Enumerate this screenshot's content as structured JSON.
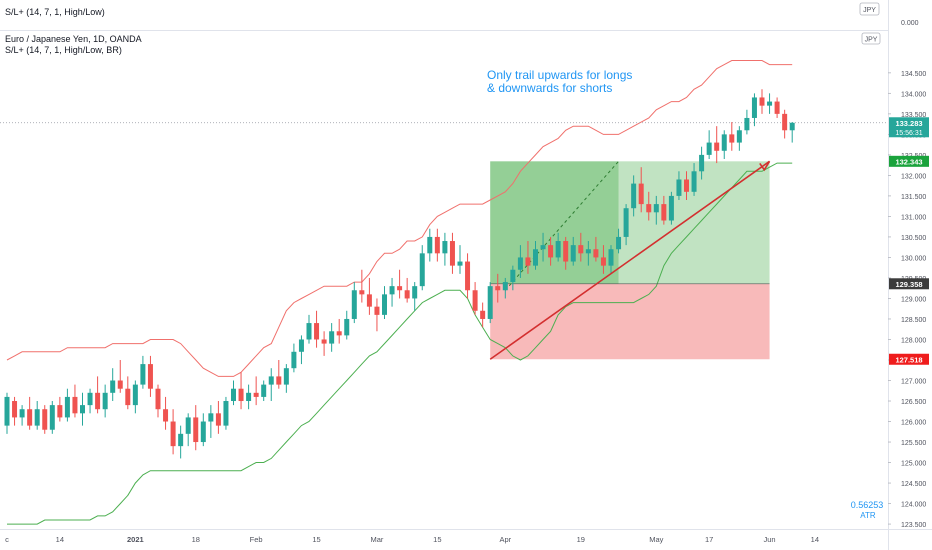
{
  "indicator_pane": {
    "label": "S/L+ (14, 7, 1, High/Low)",
    "currency_badge": "JPY",
    "axis_label": "0.000"
  },
  "main_pane": {
    "symbol_title": "Euro / Japanese Yen, 1D, OANDA",
    "study_label": "S/L+ (14, 7, 1, High/Low, BR)",
    "currency_badge": "JPY",
    "annotation_line1": "Only trail upwards for longs",
    "annotation_line2": "& downwards for shorts",
    "atr_value": "0.56253",
    "atr_label": "ATR"
  },
  "price_axis": {
    "ticks": [
      "134.500",
      "134.000",
      "133.500",
      "133.000",
      "132.500",
      "132.000",
      "131.500",
      "131.000",
      "130.500",
      "130.000",
      "129.500",
      "129.000",
      "128.500",
      "128.000",
      "127.500",
      "127.000",
      "126.500",
      "126.000",
      "125.500",
      "125.000",
      "124.500",
      "124.000",
      "123.500"
    ],
    "last_price": "133.283",
    "countdown": "15:56:31",
    "target_price": "132.343",
    "entry_price": "129.358",
    "stop_price": "127.518"
  },
  "time_axis": {
    "labels": [
      "c",
      "14",
      "2021",
      "18",
      "Feb",
      "15",
      "Mar",
      "15",
      "Apr",
      "19",
      "May",
      "17",
      "Jun",
      "14"
    ]
  },
  "colors": {
    "up": "#26a69a",
    "down": "#ef5350",
    "upper_band": "#f0706c",
    "lower_band": "#4caf50",
    "profit_zone": "#4caf50",
    "loss_zone": "#f48c8c",
    "trend_arrow": "#d32f2f",
    "annotation": "#2196f3",
    "last_price_badge": "#26a69a",
    "target_badge": "#1aa33c",
    "entry_badge": "#3c3c3c",
    "stop_badge": "#ef1c1c"
  },
  "chart_data": {
    "type": "candlestick",
    "title": "Euro / Japanese Yen, 1D, OANDA",
    "ylim": [
      123.38,
      135.52
    ],
    "x_range": [
      0,
      104
    ],
    "series": [
      {
        "name": "EUR/JPY daily OHLC",
        "ohlc": [
          [
            125.9,
            126.7,
            125.7,
            126.6
          ],
          [
            126.5,
            126.6,
            125.9,
            126.1
          ],
          [
            126.1,
            126.4,
            125.9,
            126.3
          ],
          [
            126.3,
            126.6,
            125.8,
            125.9
          ],
          [
            125.9,
            126.5,
            125.8,
            126.3
          ],
          [
            126.3,
            126.4,
            125.7,
            125.8
          ],
          [
            125.8,
            126.5,
            125.7,
            126.4
          ],
          [
            126.4,
            126.6,
            126.0,
            126.1
          ],
          [
            126.1,
            126.8,
            126.0,
            126.6
          ],
          [
            126.6,
            126.9,
            126.1,
            126.2
          ],
          [
            126.2,
            126.7,
            125.9,
            126.4
          ],
          [
            126.4,
            126.8,
            126.2,
            126.7
          ],
          [
            126.7,
            127.1,
            126.2,
            126.3
          ],
          [
            126.3,
            126.9,
            126.1,
            126.7
          ],
          [
            126.7,
            127.3,
            126.5,
            127.0
          ],
          [
            127.0,
            127.5,
            126.7,
            126.8
          ],
          [
            126.8,
            127.1,
            126.3,
            126.4
          ],
          [
            126.4,
            127.0,
            126.2,
            126.9
          ],
          [
            126.9,
            127.6,
            126.8,
            127.4
          ],
          [
            127.4,
            127.6,
            126.6,
            126.8
          ],
          [
            126.8,
            126.9,
            126.1,
            126.3
          ],
          [
            126.3,
            126.6,
            125.8,
            126.0
          ],
          [
            126.0,
            126.3,
            125.2,
            125.4
          ],
          [
            125.4,
            125.9,
            125.1,
            125.7
          ],
          [
            125.7,
            126.2,
            125.4,
            126.1
          ],
          [
            126.1,
            126.4,
            125.3,
            125.5
          ],
          [
            125.5,
            126.2,
            125.4,
            126.0
          ],
          [
            126.0,
            126.4,
            125.6,
            126.2
          ],
          [
            126.2,
            126.5,
            125.7,
            125.9
          ],
          [
            125.9,
            126.6,
            125.8,
            126.5
          ],
          [
            126.5,
            127.0,
            126.4,
            126.8
          ],
          [
            126.8,
            127.2,
            126.3,
            126.5
          ],
          [
            126.5,
            126.9,
            126.3,
            126.7
          ],
          [
            126.7,
            127.1,
            126.4,
            126.6
          ],
          [
            126.6,
            127.0,
            126.5,
            126.9
          ],
          [
            126.9,
            127.3,
            126.5,
            127.1
          ],
          [
            127.1,
            127.5,
            126.8,
            126.9
          ],
          [
            126.9,
            127.4,
            126.7,
            127.3
          ],
          [
            127.3,
            127.9,
            127.2,
            127.7
          ],
          [
            127.7,
            128.1,
            127.4,
            128.0
          ],
          [
            128.0,
            128.6,
            127.9,
            128.4
          ],
          [
            128.4,
            128.7,
            127.8,
            128.0
          ],
          [
            128.0,
            128.2,
            127.6,
            127.9
          ],
          [
            127.9,
            128.4,
            127.7,
            128.2
          ],
          [
            128.2,
            128.5,
            127.9,
            128.1
          ],
          [
            128.1,
            128.7,
            128.0,
            128.5
          ],
          [
            128.5,
            129.4,
            128.4,
            129.2
          ],
          [
            129.2,
            129.7,
            128.9,
            129.1
          ],
          [
            129.1,
            129.5,
            128.6,
            128.8
          ],
          [
            128.8,
            129.0,
            128.2,
            128.6
          ],
          [
            128.6,
            129.3,
            128.5,
            129.1
          ],
          [
            129.1,
            129.5,
            128.8,
            129.3
          ],
          [
            129.3,
            129.7,
            129.0,
            129.2
          ],
          [
            129.2,
            129.5,
            128.9,
            129.0
          ],
          [
            129.0,
            129.4,
            128.7,
            129.3
          ],
          [
            129.3,
            130.3,
            129.2,
            130.1
          ],
          [
            130.1,
            130.7,
            129.9,
            130.5
          ],
          [
            130.5,
            130.7,
            129.9,
            130.1
          ],
          [
            130.1,
            130.6,
            129.8,
            130.4
          ],
          [
            130.4,
            130.6,
            129.6,
            129.8
          ],
          [
            129.8,
            130.3,
            129.6,
            129.9
          ],
          [
            129.9,
            130.1,
            129.0,
            129.2
          ],
          [
            129.2,
            129.4,
            128.6,
            128.7
          ],
          [
            128.7,
            128.9,
            128.3,
            128.5
          ],
          [
            128.5,
            129.4,
            128.4,
            129.3
          ],
          [
            129.3,
            129.6,
            128.9,
            129.2
          ],
          [
            129.2,
            129.5,
            129.0,
            129.4
          ],
          [
            129.4,
            129.8,
            129.2,
            129.7
          ],
          [
            129.7,
            130.3,
            129.5,
            130.0
          ],
          [
            130.0,
            130.4,
            129.6,
            129.8
          ],
          [
            129.8,
            130.4,
            129.7,
            130.2
          ],
          [
            130.2,
            130.6,
            129.9,
            130.3
          ],
          [
            130.3,
            130.5,
            129.8,
            130.0
          ],
          [
            130.0,
            130.6,
            129.9,
            130.4
          ],
          [
            130.4,
            130.5,
            129.7,
            129.9
          ],
          [
            129.9,
            130.5,
            129.8,
            130.3
          ],
          [
            130.3,
            130.6,
            129.9,
            130.1
          ],
          [
            130.1,
            130.4,
            129.8,
            130.2
          ],
          [
            130.2,
            130.5,
            129.9,
            130.0
          ],
          [
            130.0,
            130.3,
            129.6,
            129.8
          ],
          [
            129.8,
            130.3,
            129.6,
            130.2
          ],
          [
            130.2,
            130.7,
            130.1,
            130.5
          ],
          [
            130.5,
            131.3,
            130.3,
            131.2
          ],
          [
            131.2,
            132.0,
            131.0,
            131.8
          ],
          [
            131.8,
            132.2,
            131.1,
            131.3
          ],
          [
            131.3,
            131.6,
            130.9,
            131.1
          ],
          [
            131.1,
            131.5,
            130.8,
            131.3
          ],
          [
            131.3,
            131.5,
            130.8,
            130.9
          ],
          [
            130.9,
            131.6,
            130.8,
            131.5
          ],
          [
            131.5,
            132.1,
            131.4,
            131.9
          ],
          [
            131.9,
            132.1,
            131.4,
            131.6
          ],
          [
            131.6,
            132.3,
            131.5,
            132.1
          ],
          [
            132.1,
            132.7,
            131.9,
            132.5
          ],
          [
            132.5,
            133.1,
            132.4,
            132.8
          ],
          [
            132.8,
            133.2,
            132.3,
            132.6
          ],
          [
            132.6,
            133.1,
            132.4,
            133.0
          ],
          [
            133.0,
            133.3,
            132.6,
            132.8
          ],
          [
            132.8,
            133.2,
            132.6,
            133.1
          ],
          [
            133.1,
            133.6,
            133.0,
            133.4
          ],
          [
            133.4,
            134.0,
            133.2,
            133.9
          ],
          [
            133.9,
            134.1,
            133.5,
            133.7
          ],
          [
            133.7,
            134.0,
            133.5,
            133.8
          ],
          [
            133.8,
            133.9,
            133.4,
            133.5
          ],
          [
            133.5,
            133.6,
            132.9,
            133.1
          ],
          [
            133.1,
            133.3,
            132.8,
            133.283
          ]
        ]
      },
      {
        "name": "upper stop band",
        "values": [
          127.5,
          127.6,
          127.7,
          127.7,
          127.7,
          127.7,
          127.7,
          127.7,
          127.8,
          127.8,
          127.8,
          127.8,
          127.8,
          127.8,
          127.9,
          127.9,
          127.9,
          127.9,
          127.9,
          128.0,
          128.0,
          128.0,
          128.0,
          127.9,
          127.7,
          127.5,
          127.3,
          127.2,
          127.1,
          127.1,
          127.1,
          127.2,
          127.4,
          127.6,
          127.8,
          127.9,
          128.3,
          128.7,
          128.9,
          129.0,
          129.1,
          129.2,
          129.3,
          129.3,
          129.3,
          129.3,
          129.4,
          129.4,
          129.6,
          129.9,
          130.1,
          130.1,
          130.2,
          130.4,
          130.4,
          130.5,
          130.8,
          131.0,
          131.1,
          131.2,
          131.3,
          131.3,
          131.3,
          131.3,
          131.4,
          131.5,
          131.6,
          131.8,
          132.1,
          132.3,
          132.5,
          132.7,
          132.8,
          132.9,
          133.1,
          133.2,
          133.2,
          133.2,
          133.1,
          133.0,
          133.0,
          133.0,
          133.1,
          133.2,
          133.3,
          133.4,
          133.6,
          133.7,
          133.8,
          133.8,
          133.9,
          134.1,
          134.2,
          134.4,
          134.6,
          134.7,
          134.8,
          134.8,
          134.8,
          134.8,
          134.8,
          134.7,
          134.7,
          134.7,
          134.7
        ]
      },
      {
        "name": "lower stop band",
        "values": [
          123.5,
          123.5,
          123.5,
          123.5,
          123.5,
          123.6,
          123.6,
          123.6,
          123.6,
          123.6,
          123.6,
          123.6,
          123.7,
          123.7,
          123.8,
          124.0,
          124.2,
          124.5,
          124.7,
          124.8,
          124.8,
          124.8,
          124.8,
          124.8,
          124.8,
          124.8,
          124.8,
          124.8,
          124.8,
          124.8,
          124.8,
          124.8,
          124.9,
          125.0,
          125.0,
          125.1,
          125.3,
          125.5,
          125.7,
          125.9,
          126.0,
          126.2,
          126.4,
          126.6,
          126.8,
          127.0,
          127.2,
          127.4,
          127.6,
          127.7,
          127.9,
          128.1,
          128.3,
          128.5,
          128.7,
          128.9,
          129.0,
          129.1,
          129.2,
          129.2,
          129.2,
          129.0,
          128.6,
          128.3,
          128.0,
          127.9,
          127.8,
          127.6,
          127.5,
          127.6,
          127.8,
          128.0,
          128.2,
          128.6,
          128.8,
          128.9,
          128.9,
          128.9,
          128.9,
          128.9,
          128.9,
          128.9,
          128.9,
          128.9,
          129.0,
          129.1,
          129.3,
          129.8,
          130.1,
          130.3,
          130.5,
          130.7,
          130.9,
          131.1,
          131.3,
          131.5,
          131.7,
          131.9,
          132.1,
          132.1,
          132.1,
          132.2,
          132.3,
          132.3,
          132.3
        ]
      }
    ],
    "position": {
      "type": "long",
      "x_start": 64,
      "x_end": 101,
      "x_profit_split": 81,
      "entry": 129.358,
      "target": 132.343,
      "stop": 127.518
    },
    "trend_line": {
      "from": [
        64,
        127.518
      ],
      "to": [
        101,
        132.343
      ]
    },
    "dashed_line": {
      "from": [
        66,
        129.2
      ],
      "to": [
        81,
        132.343
      ]
    },
    "last_price": 133.283,
    "y_ticks": [
      134.5,
      134.0,
      133.5,
      133.0,
      132.5,
      132.0,
      131.5,
      131.0,
      130.5,
      130.0,
      129.5,
      129.0,
      128.5,
      128.0,
      127.5,
      127.0,
      126.5,
      126.0,
      125.5,
      125.0,
      124.5,
      124.0,
      123.5
    ],
    "x_ticks": [
      {
        "label": "c",
        "x": 0
      },
      {
        "label": "14",
        "x": 7
      },
      {
        "label": "2021",
        "x": 17
      },
      {
        "label": "18",
        "x": 25
      },
      {
        "label": "Feb",
        "x": 33
      },
      {
        "label": "15",
        "x": 41
      },
      {
        "label": "Mar",
        "x": 49
      },
      {
        "label": "15",
        "x": 57
      },
      {
        "label": "Apr",
        "x": 66
      },
      {
        "label": "19",
        "x": 76
      },
      {
        "label": "May",
        "x": 86
      },
      {
        "label": "17",
        "x": 93
      },
      {
        "label": "Jun",
        "x": 101
      },
      {
        "label": "14",
        "x": 107
      }
    ]
  }
}
